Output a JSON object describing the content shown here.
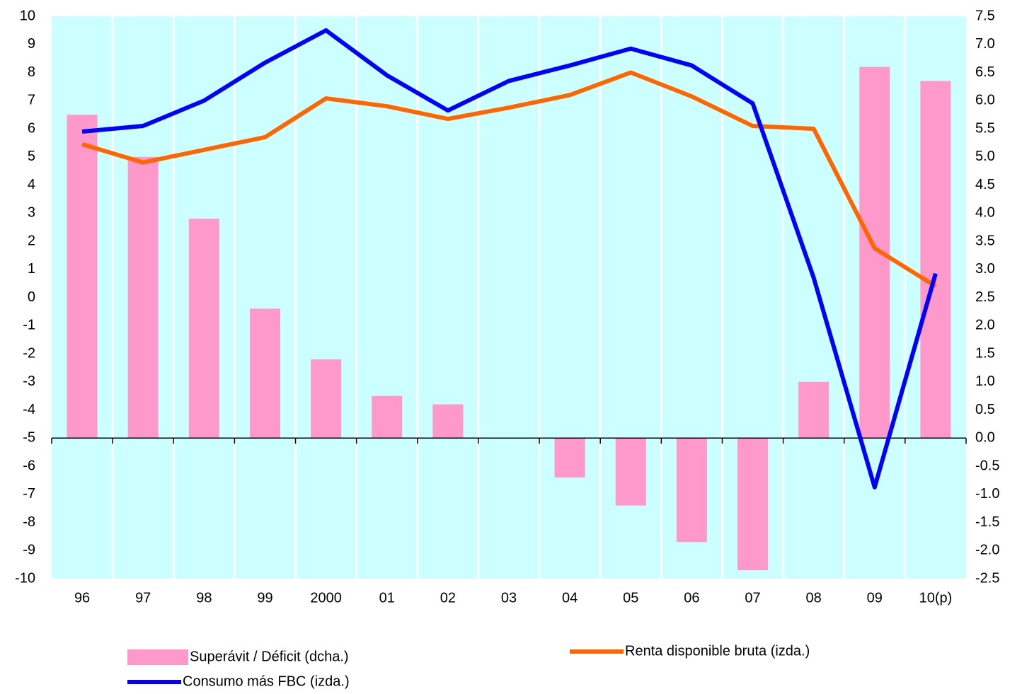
{
  "chart_data": {
    "type": "bar",
    "categories": [
      "96",
      "97",
      "98",
      "99",
      "2000",
      "01",
      "02",
      "03",
      "04",
      "05",
      "06",
      "07",
      "08",
      "09",
      "10(p)"
    ],
    "series": [
      {
        "name": "Superávit / Déficit (dcha.)",
        "type": "bar",
        "axis": "y2",
        "color": "#ff99cc",
        "values": [
          5.75,
          5.0,
          3.9,
          2.3,
          1.4,
          0.75,
          0.6,
          0,
          -0.7,
          -1.2,
          -1.85,
          -2.35,
          1.0,
          6.6,
          6.35
        ]
      },
      {
        "name": "Renta disponible bruta (izda.)",
        "type": "line",
        "color": "#ff6600",
        "values": [
          5.45,
          4.8,
          5.25,
          5.7,
          7.08,
          6.8,
          6.35,
          6.75,
          7.2,
          8.0,
          7.15,
          6.1,
          6.0,
          1.75,
          0.4
        ]
      },
      {
        "name": "Consumo más FBC (izda.)",
        "type": "line",
        "color": "#0000ff",
        "values": [
          5.9,
          6.1,
          7.0,
          8.35,
          9.5,
          7.9,
          6.65,
          7.7,
          8.25,
          8.85,
          8.25,
          6.9,
          0.7,
          -6.75,
          0.85
        ]
      }
    ],
    "ylim": [
      -10,
      10
    ],
    "yticks": [
      -10,
      -9,
      -8,
      -7,
      -6,
      -5,
      -4,
      -3,
      -2,
      -1,
      0,
      1,
      2,
      3,
      4,
      5,
      6,
      7,
      8,
      9,
      10
    ],
    "y2lim": [
      -2.5,
      7.5
    ],
    "y2ticks": [
      -2.5,
      {
        "value": -2,
        "label": "-2.0"
      },
      -1.5,
      {
        "value": -1,
        "label": "-1.0"
      },
      -0.5,
      {
        "value": 0,
        "label": "0.0"
      },
      0.5,
      {
        "value": 1,
        "label": "1.0"
      },
      1.5,
      {
        "value": 2,
        "label": "2.0"
      },
      2.5,
      {
        "value": 3,
        "label": "3.0"
      },
      3.5,
      {
        "value": 4,
        "label": "4.0"
      },
      4.5,
      {
        "value": 5,
        "label": "5.0"
      },
      5.5,
      {
        "value": 6,
        "label": "6.0"
      },
      6.5,
      {
        "value": 7,
        "label": "7.0"
      },
      7.5
    ],
    "grid": true,
    "plot_background": "#ccffff"
  }
}
